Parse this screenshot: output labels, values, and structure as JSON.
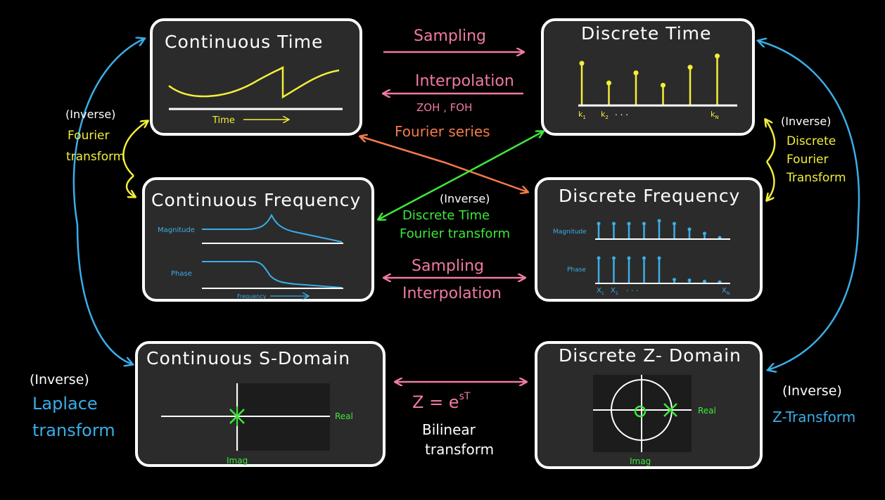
{
  "colors": {
    "pink": "#f07aa0",
    "yellow": "#f2ef3a",
    "green": "#3ee83a",
    "blue": "#3aaee8",
    "orange": "#f27a4a",
    "white": "#ffffff",
    "box": "#2b2b2b"
  },
  "boxes": {
    "continuous_time": {
      "title": "Continuous  Time",
      "axis_label": "Time"
    },
    "discrete_time": {
      "title": "Discrete  Time",
      "k1": "k",
      "k1_sub": "1",
      "k2": "k",
      "k2_sub": "2",
      "dots": ". . .",
      "kn": "k",
      "kn_sub": "N"
    },
    "continuous_frequency": {
      "title": "Continuous  Frequency",
      "magnitude": "Magnitude",
      "phase": "Phase",
      "axis_label": "Frequency"
    },
    "discrete_frequency": {
      "title": "Discrete  Frequency",
      "magnitude": "Magnitude",
      "phase": "Phase",
      "x1": "X",
      "x1_sub": "1",
      "x2": "X",
      "x2_sub": "2",
      "dots": ". . .",
      "xn": "X",
      "xn_sub": "N"
    },
    "continuous_s": {
      "title": "Continuous  S-Domain",
      "real": "Real",
      "imag": "Imag"
    },
    "discrete_z": {
      "title": "Discrete  Z- Domain",
      "real": "Real",
      "imag": "Imag"
    }
  },
  "labels": {
    "sampling_top": "Sampling",
    "interpolation_top": "Interpolation",
    "zoh_foh": "ZOH , FOH",
    "fourier_series": "Fourier series",
    "dtft_inverse": "(Inverse)",
    "dtft_line1": "Discrete Time",
    "dtft_line2": "Fourier transform",
    "sampling_mid": "Sampling",
    "interpolation_mid": "Interpolation",
    "z_equals": "Z = e",
    "z_exp": "sT",
    "bilinear_line1": "Bilinear",
    "bilinear_line2": "transform",
    "ft_inverse": "(Inverse)",
    "ft_line1": "Fourier",
    "ft_line2": "transform",
    "dft_inverse": "(Inverse)",
    "dft_line1": "Discrete",
    "dft_line2": "Fourier",
    "dft_line3": "Transform",
    "laplace_inverse": "(Inverse)",
    "laplace_line1": "Laplace",
    "laplace_line2": "transform",
    "zt_inverse": "(Inverse)",
    "zt_line1": "Z-Transform"
  },
  "discrete_time_stems": [
    0.75,
    0.4,
    0.58,
    0.36,
    0.68,
    0.88
  ],
  "discrete_freq_magnitude_stems": [
    0.55,
    0.55,
    0.55,
    0.55,
    0.65,
    0.55,
    0.35,
    0.2,
    0.05
  ],
  "discrete_freq_phase_stems": [
    0.8,
    0.8,
    0.8,
    0.8,
    0.8,
    0.12,
    0.1,
    0.06,
    0.04
  ]
}
